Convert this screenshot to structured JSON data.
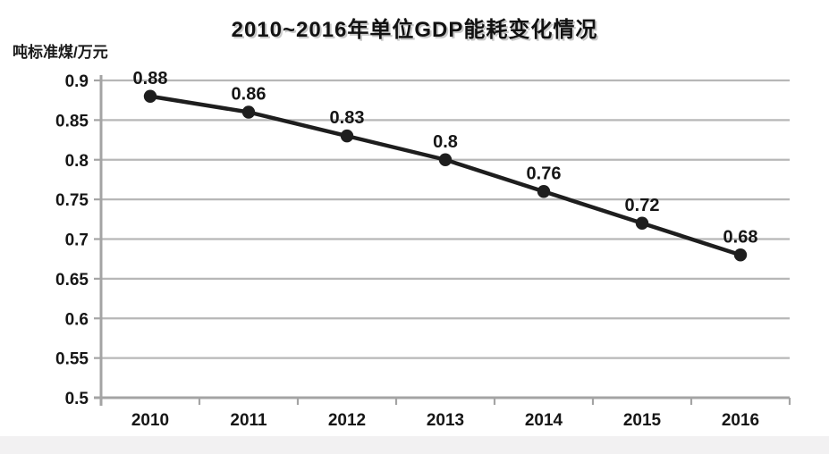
{
  "title": "2010~2016年单位GDP能耗变化情况",
  "y_unit_label": "吨标准煤/万元",
  "colors": {
    "line": "#1e1e1e",
    "marker": "#1e1e1e",
    "gridline": "#b7b7b7",
    "axis": "#a4a4a4",
    "text": "#161616",
    "title_shadow": "#c9c9c9",
    "background": "#ffffff",
    "bottom_strip": "#f2f1f2"
  },
  "chart_data": {
    "type": "line",
    "title": "2010~2016年单位GDP能耗变化情况",
    "xlabel": "",
    "ylabel": "吨标准煤/万元",
    "categories": [
      "2010",
      "2011",
      "2012",
      "2013",
      "2014",
      "2015",
      "2016"
    ],
    "values": [
      0.88,
      0.86,
      0.83,
      0.8,
      0.76,
      0.72,
      0.68
    ],
    "point_labels": [
      "0.88",
      "0.86",
      "0.83",
      "0.8",
      "0.76",
      "0.72",
      "0.68"
    ],
    "ylim": [
      0.5,
      0.9
    ],
    "ytick_step": 0.05,
    "ytick_labels": [
      "0.9",
      "0.85",
      "0.8",
      "0.75",
      "0.7",
      "0.65",
      "0.6",
      "0.55",
      "0.5"
    ],
    "grid": true,
    "legend": false,
    "line_color": "#1e1e1e",
    "grid_color": "#b7b7b7",
    "axis_color": "#a4a4a4"
  }
}
